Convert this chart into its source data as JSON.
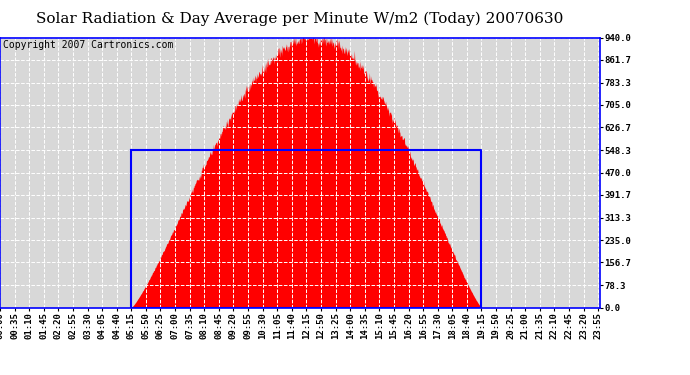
{
  "title": "Solar Radiation & Day Average per Minute W/m2 (Today) 20070630",
  "copyright": "Copyright 2007 Cartronics.com",
  "y_min": 0.0,
  "y_max": 940.0,
  "y_ticks": [
    0.0,
    78.3,
    156.7,
    235.0,
    313.3,
    391.7,
    470.0,
    548.3,
    626.7,
    705.0,
    783.3,
    861.7,
    940.0
  ],
  "bg_color": "#ffffff",
  "plot_bg_color": "#d8d8d8",
  "fill_color": "#ff0000",
  "line_color": "#0000ff",
  "grid_color": "#ffffff",
  "x_start_min": 0,
  "x_end_min": 1440,
  "sunrise_min": 315,
  "sunset_min": 1155,
  "day_avg": 548.3,
  "peak_time_min": 757,
  "peak_value": 940.0,
  "title_fontsize": 11,
  "copyright_fontsize": 7,
  "tick_fontsize": 6.5,
  "tick_interval": 35
}
